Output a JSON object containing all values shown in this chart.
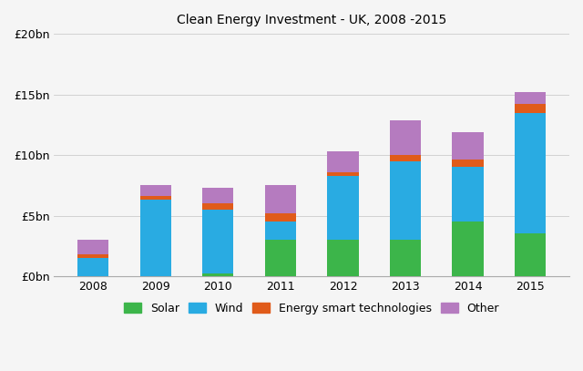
{
  "title": "Clean Energy Investment - UK, 2008 -2015",
  "years": [
    2008,
    2009,
    2010,
    2011,
    2012,
    2013,
    2014,
    2015
  ],
  "solar": [
    0.0,
    0.0,
    0.2,
    3.0,
    3.0,
    3.0,
    4.5,
    3.5
  ],
  "wind": [
    1.5,
    6.3,
    5.3,
    1.5,
    5.3,
    6.5,
    4.5,
    10.0
  ],
  "energy_smart": [
    0.3,
    0.3,
    0.5,
    0.7,
    0.3,
    0.5,
    0.6,
    0.7
  ],
  "other": [
    1.2,
    0.9,
    1.3,
    2.3,
    1.7,
    2.9,
    2.3,
    1.0
  ],
  "colors": {
    "solar": "#3cb54a",
    "wind": "#29abe2",
    "energy_smart": "#e05b1a",
    "other": "#b57bbf"
  },
  "ylim": [
    0,
    20
  ],
  "yticks": [
    0,
    5,
    10,
    15,
    20
  ],
  "ytick_labels": [
    "£0bn",
    "£5bn",
    "£10bn",
    "£15bn",
    "£20bn"
  ],
  "legend_labels": [
    "Solar",
    "Wind",
    "Energy smart technologies",
    "Other"
  ],
  "background_color": "#f5f5f5",
  "title_fontsize": 10,
  "tick_fontsize": 9,
  "legend_fontsize": 9
}
